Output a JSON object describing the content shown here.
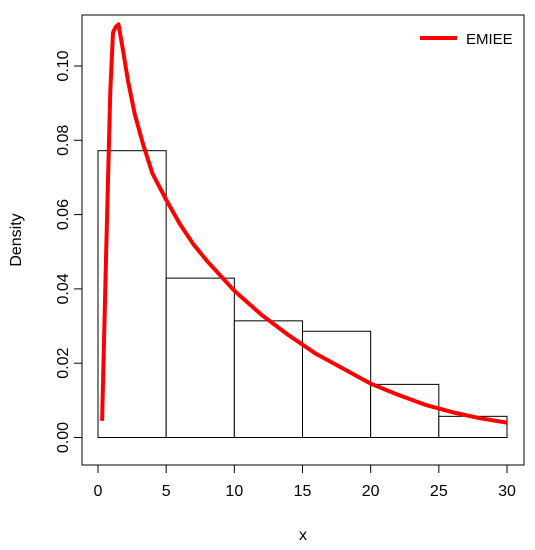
{
  "chart_data": {
    "type": "histogram-with-density-curve",
    "xlabel": "x",
    "ylabel": "Density",
    "xlim": [
      0,
      30
    ],
    "ylim": [
      0,
      0.112
    ],
    "x_ticks": [
      0,
      5,
      10,
      15,
      20,
      25,
      30
    ],
    "y_ticks": [
      0.0,
      0.02,
      0.04,
      0.06,
      0.08,
      0.1
    ],
    "y_tick_labels": [
      "0.00",
      "0.02",
      "0.04",
      "0.06",
      "0.08",
      "0.10"
    ],
    "bins": [
      {
        "start": 0,
        "end": 5,
        "density": 0.0772
      },
      {
        "start": 5,
        "end": 10,
        "density": 0.0429
      },
      {
        "start": 10,
        "end": 15,
        "density": 0.0314
      },
      {
        "start": 15,
        "end": 20,
        "density": 0.0286
      },
      {
        "start": 20,
        "end": 25,
        "density": 0.0143
      },
      {
        "start": 25,
        "end": 30,
        "density": 0.0057
      }
    ],
    "series": [
      {
        "name": "EMIEE",
        "color": "#ff0000",
        "x": [
          0.3,
          0.6,
          0.9,
          1.1,
          1.3,
          1.5,
          1.8,
          2.2,
          2.7,
          3.3,
          4.0,
          5.0,
          6.0,
          7.0,
          8.0,
          9.0,
          10.0,
          12.0,
          14.0,
          16.0,
          18.0,
          20.0,
          22.0,
          24.0,
          26.0,
          28.0,
          30.0
        ],
        "y": [
          0.0045,
          0.05,
          0.093,
          0.109,
          0.1105,
          0.1112,
          0.105,
          0.096,
          0.087,
          0.079,
          0.071,
          0.064,
          0.0575,
          0.052,
          0.0475,
          0.0435,
          0.0395,
          0.033,
          0.0275,
          0.0225,
          0.0185,
          0.0145,
          0.0115,
          0.0088,
          0.0068,
          0.0052,
          0.004
        ]
      }
    ],
    "legend": {
      "position": "top-right",
      "labels": [
        "EMIEE"
      ]
    }
  }
}
